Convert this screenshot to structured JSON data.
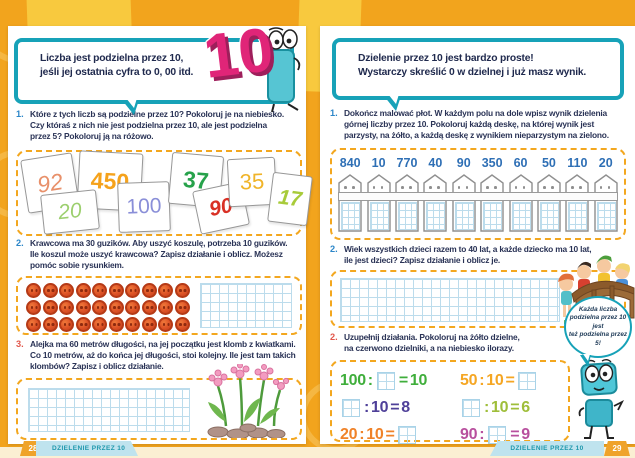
{
  "palette": {
    "background_orange": "#F2A41D",
    "accent_teal": "#17A2B8",
    "dashed_border": "#F3A71F",
    "big_number_pink": "#E02578",
    "fence_number_blue": "#2E6FB5",
    "button_orange": "#DD5226",
    "footer_ribbon_blue": "#BFE3EE",
    "footer_tab_orange": "#EFA32A",
    "text_navy": "#2A3356"
  },
  "left_page": {
    "speech_bubble": {
      "text": "Liczba jest podzielna przez 10,\njeśli jej ostatnia cyfra to 0, 00 itd."
    },
    "big_number": "10",
    "exercise1": {
      "num": "1.",
      "text": "Które z tych liczb są podzielne przez 10? Pokoloruj je na niebiesko.\nCzy któraś z nich nie jest podzielna przez 10, ale jest podzielna\nprzez 5? Pokoloruj ją na różowo."
    },
    "number_cards": [
      {
        "value": "92",
        "color": "#E8906A"
      },
      {
        "value": "450",
        "color": "#F5A21B"
      },
      {
        "value": "20",
        "color": "#9CCF6E"
      },
      {
        "value": "100",
        "color": "#8A8FD8"
      },
      {
        "value": "37",
        "color": "#27A24B"
      },
      {
        "value": "90",
        "color": "#D93025"
      },
      {
        "value": "35",
        "color": "#F0B429"
      },
      {
        "value": "17",
        "color": "#A8CB3A"
      }
    ],
    "exercise2": {
      "num": "2.",
      "text": "Krawcowa ma 30 guzików. Aby uszyć koszulę, potrzeba 10 guzików.\nIle koszul może uszyć krawcowa? Zapisz działanie i oblicz. Możesz\npomóc sobie rysunkiem."
    },
    "buttons": {
      "rows": 3,
      "cols": 10
    },
    "exercise3": {
      "num": "3.",
      "text": "Alejka ma 60 metrów długości, na jej początku jest klomb z kwiatkami.\nCo 10 metrów, aż do końca jej długości, stoi kolejny. Ile jest tam takich\nklombów? Zapisz i oblicz działanie."
    },
    "footer": {
      "page_number": "28",
      "title": "DZIELENIE PRZEZ 10"
    }
  },
  "right_page": {
    "speech_bubble": {
      "text": "Dzielenie przez 10 jest bardzo proste!\nWystarczy skreślić 0 w dzielnej i już masz wynik."
    },
    "exercise1": {
      "num": "1.",
      "text": "Dokończ malować płot. W każdym polu na dole wpisz wynik dzielenia\ngórnej liczby przez 10. Pokoloruj każdą deskę, na której wynik jest\nparzysty, na żółto, a każdą deskę z wynikiem nieparzystym na zielono."
    },
    "fence_numbers": [
      "840",
      "10",
      "770",
      "40",
      "90",
      "350",
      "60",
      "50",
      "110",
      "20"
    ],
    "exercise2": {
      "num": "2.",
      "text": "Wiek wszystkich dzieci razem to 40 lat, a każde dziecko ma 10 lat,\nile jest dzieci? Zapisz działanie i oblicz je."
    },
    "exercise3": {
      "num": "2.",
      "text": "Uzupełnij działania. Pokoloruj na żółto dzielne,\nna czerwono dzielniki, a na niebiesko ilorazy."
    },
    "equations": [
      {
        "tokens": [
          "100",
          ":",
          "□",
          "=",
          "10"
        ],
        "color": "#3FAE3B"
      },
      {
        "tokens": [
          "50",
          ":",
          "10",
          "=",
          "□"
        ],
        "color": "#F5A623"
      },
      {
        "tokens": [
          "□",
          ":",
          "10",
          "=",
          "8"
        ],
        "color": "#4F4099"
      },
      {
        "tokens": [
          "□",
          ":",
          "10",
          "=",
          "6"
        ],
        "color": "#9FBE3A"
      },
      {
        "tokens": [
          "20",
          ":",
          "10",
          "=",
          "□"
        ],
        "color": "#F08228"
      },
      {
        "tokens": [
          "90",
          ":",
          "□",
          "=",
          "9"
        ],
        "color": "#B84F9E"
      }
    ],
    "mini_bubble": {
      "text": "Każda liczba\npodzielna przez 10 jest\nteż podzielna przez 5!"
    },
    "footer": {
      "page_number": "29",
      "title": "DZIELENIE PRZEZ 10"
    }
  }
}
